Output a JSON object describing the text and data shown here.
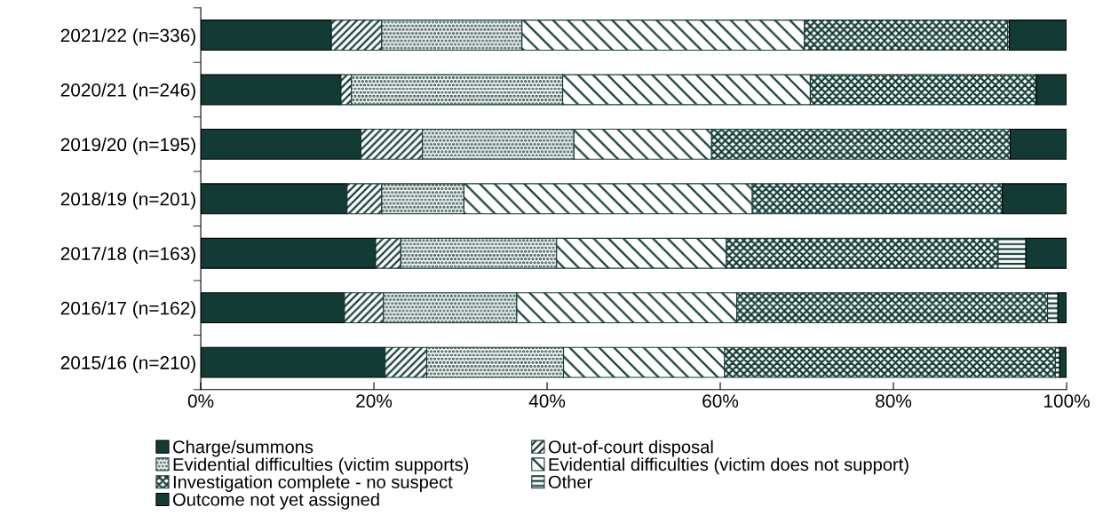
{
  "chart_data": {
    "type": "bar",
    "orientation": "horizontal",
    "stacked": true,
    "categories": [
      "2021/22 (n=336)",
      "2020/21 (n=246)",
      "2019/20 (n=195)",
      "2018/19 (n=201)",
      "2017/18 (n=163)",
      "2016/17 (n=162)",
      "2015/16 (n=210)"
    ],
    "series": [
      {
        "name": "Charge/summons",
        "color": "#133b35",
        "values": [
          15.1,
          16.2,
          18.5,
          16.9,
          20.2,
          16.6,
          21.3
        ]
      },
      {
        "name": "Out-of-court disposal",
        "color": "#133b35",
        "values": [
          5.8,
          1.2,
          7.1,
          4.0,
          2.9,
          4.5,
          4.8
        ]
      },
      {
        "name": "Evidential difficulties (victim supports)",
        "color": "#133b35",
        "values": [
          16.2,
          24.4,
          17.5,
          9.5,
          18.0,
          15.4,
          15.8
        ]
      },
      {
        "name": "Evidential difficulties (victim does not support)",
        "color": "#133b35",
        "values": [
          32.6,
          28.6,
          15.9,
          33.3,
          19.6,
          25.4,
          18.6
        ]
      },
      {
        "name": "Investigation complete - no suspect",
        "color": "#133b35",
        "values": [
          23.5,
          26.1,
          34.5,
          28.9,
          31.4,
          35.9,
          38.2
        ]
      },
      {
        "name": "Other",
        "color": "#133b35",
        "values": [
          0.2,
          0,
          0,
          0,
          3.2,
          1.2,
          0.5
        ]
      },
      {
        "name": "Outcome not yet assigned",
        "color": "#133b35",
        "values": [
          6.6,
          3.5,
          6.5,
          7.4,
          4.7,
          1.0,
          0.8
        ]
      }
    ],
    "xlim": [
      0,
      100
    ],
    "xticks": [
      {
        "value": 0,
        "label": "0%"
      },
      {
        "value": 20,
        "label": "20%"
      },
      {
        "value": 40,
        "label": "40%"
      },
      {
        "value": 60,
        "label": "60%"
      },
      {
        "value": 80,
        "label": "80%"
      },
      {
        "value": 100,
        "label": "100%"
      }
    ],
    "grid": false,
    "legend": "bottom"
  }
}
